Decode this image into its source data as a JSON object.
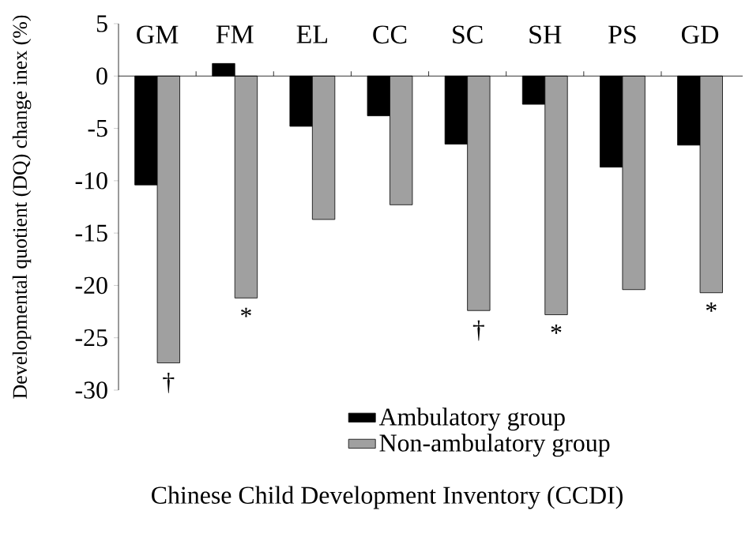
{
  "chart_data": {
    "type": "bar",
    "ylabel": "Developmental quotient (DQ) change inex (%)",
    "xlabel": "Chinese Child Development Inventory (CCDI)",
    "categories": [
      "GM",
      "FM",
      "EL",
      "CC",
      "SC",
      "SH",
      "PS",
      "GD"
    ],
    "series": [
      {
        "name": "Ambulatory group",
        "color": "#000000",
        "values": [
          -10.4,
          1.2,
          -4.8,
          -3.8,
          -6.5,
          -2.7,
          -8.7,
          -6.6
        ]
      },
      {
        "name": "Non-ambulatory group",
        "color": "#a0a0a0",
        "values": [
          -27.4,
          -21.2,
          -13.7,
          -12.3,
          -22.4,
          -22.8,
          -20.4,
          -20.7
        ]
      }
    ],
    "ylim": [
      -30,
      5
    ],
    "yticks": [
      -30,
      -25,
      -20,
      -15,
      -10,
      -5,
      0,
      5
    ],
    "legend": "bottom",
    "annotations": [
      {
        "text": "†",
        "x": "GM",
        "y": -27.4
      },
      {
        "text": "*",
        "x": "FM",
        "y": -21.2
      },
      {
        "text": "†",
        "x": "SC",
        "y": -22.4
      },
      {
        "text": "*",
        "x": "SH",
        "y": -22.8
      },
      {
        "text": "*",
        "x": "GD",
        "y": -20.7
      }
    ]
  }
}
